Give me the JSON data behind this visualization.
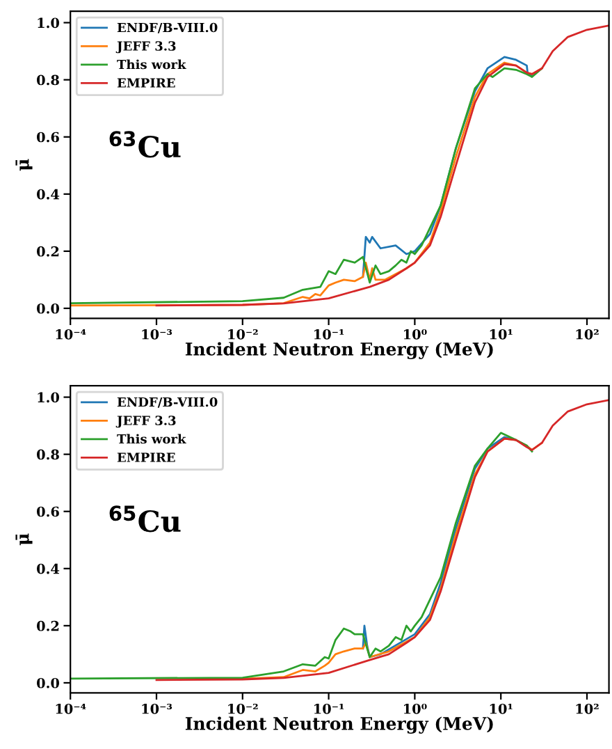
{
  "chart_data": [
    {
      "type": "line",
      "xlabel": "Incident Neutron Energy (MeV)",
      "ylabel": "μ̄",
      "annotations": [
        "$^{63}$Cu"
      ],
      "log": "x",
      "legend": "top left",
      "grid": false,
      "xlim": [
        0.0001,
        180
      ],
      "ylim": [
        -0.035,
        1.04
      ],
      "xticks": [
        {
          "value": 0.0001,
          "label": "10⁻⁴"
        },
        {
          "value": 0.001,
          "label": "10⁻³"
        },
        {
          "value": 0.01,
          "label": "10⁻²"
        },
        {
          "value": 0.1,
          "label": "10⁻¹"
        },
        {
          "value": 1,
          "label": "10⁰"
        },
        {
          "value": 10,
          "label": "10¹"
        },
        {
          "value": 100,
          "label": "10²"
        }
      ],
      "yticks": [
        {
          "value": 0,
          "label": "0.0"
        },
        {
          "value": 0.2,
          "label": "0.2"
        },
        {
          "value": 0.4,
          "label": "0.4"
        },
        {
          "value": 0.6,
          "label": "0.6"
        },
        {
          "value": 0.8,
          "label": "0.8"
        },
        {
          "value": 1,
          "label": "1.0"
        }
      ],
      "series": [
        {
          "name": "ENDF/B-VIII.0",
          "color": "#1f77b4",
          "x": [
            0.25,
            0.27,
            0.3,
            0.32,
            0.4,
            0.6,
            0.8,
            1.0,
            1.5,
            2,
            3,
            5,
            7,
            11,
            15,
            20,
            20.5,
            23
          ],
          "values": [
            0.11,
            0.25,
            0.23,
            0.25,
            0.21,
            0.22,
            0.19,
            0.2,
            0.26,
            0.36,
            0.56,
            0.76,
            0.84,
            0.88,
            0.87,
            0.85,
            0.82,
            0.815
          ]
        },
        {
          "name": "JEFF 3.3",
          "color": "#ff7f0e",
          "x": [
            0.0001,
            0.01,
            0.03,
            0.05,
            0.06,
            0.07,
            0.08,
            0.1,
            0.12,
            0.15,
            0.2,
            0.25,
            0.27,
            0.3,
            0.32,
            0.35,
            0.45,
            0.8,
            1.0,
            1.5,
            2,
            3,
            5,
            7,
            11,
            15,
            20,
            23,
            30
          ],
          "values": [
            0.01,
            0.012,
            0.018,
            0.04,
            0.035,
            0.05,
            0.045,
            0.08,
            0.09,
            0.1,
            0.095,
            0.11,
            0.16,
            0.1,
            0.14,
            0.1,
            0.1,
            0.14,
            0.16,
            0.23,
            0.34,
            0.53,
            0.74,
            0.82,
            0.86,
            0.85,
            0.825,
            0.82,
            0.84
          ]
        },
        {
          "name": "This work",
          "color": "#2ca02c",
          "x": [
            0.0001,
            0.01,
            0.03,
            0.05,
            0.08,
            0.1,
            0.12,
            0.15,
            0.2,
            0.25,
            0.3,
            0.35,
            0.4,
            0.5,
            0.6,
            0.7,
            0.8,
            0.9,
            1.0,
            1.2,
            2,
            3,
            5,
            7,
            8,
            11,
            15,
            20,
            23,
            30
          ],
          "values": [
            0.018,
            0.025,
            0.037,
            0.065,
            0.075,
            0.13,
            0.12,
            0.17,
            0.16,
            0.18,
            0.09,
            0.15,
            0.12,
            0.13,
            0.15,
            0.17,
            0.16,
            0.2,
            0.19,
            0.22,
            0.36,
            0.56,
            0.77,
            0.82,
            0.81,
            0.84,
            0.835,
            0.82,
            0.81,
            0.84
          ]
        },
        {
          "name": "EMPIRE",
          "color": "#d62728",
          "x": [
            0.001,
            0.01,
            0.03,
            0.1,
            0.3,
            0.5,
            0.8,
            1,
            1.5,
            2,
            3,
            5,
            7,
            11,
            15,
            20,
            23,
            30,
            40,
            60,
            100,
            180
          ],
          "values": [
            0.01,
            0.012,
            0.017,
            0.035,
            0.075,
            0.1,
            0.14,
            0.16,
            0.22,
            0.32,
            0.5,
            0.72,
            0.81,
            0.855,
            0.85,
            0.825,
            0.82,
            0.84,
            0.9,
            0.95,
            0.975,
            0.99
          ]
        }
      ]
    },
    {
      "type": "line",
      "xlabel": "Incident Neutron Energy (MeV)",
      "ylabel": "μ̄",
      "annotations": [
        "$^{65}$Cu"
      ],
      "log": "x",
      "legend": "top left",
      "grid": false,
      "xlim": [
        0.0001,
        180
      ],
      "ylim": [
        -0.035,
        1.04
      ],
      "xticks": [
        {
          "value": 0.0001,
          "label": "10⁻⁴"
        },
        {
          "value": 0.001,
          "label": "10⁻³"
        },
        {
          "value": 0.01,
          "label": "10⁻²"
        },
        {
          "value": 0.1,
          "label": "10⁻¹"
        },
        {
          "value": 1,
          "label": "10⁰"
        },
        {
          "value": 10,
          "label": "10¹"
        },
        {
          "value": 100,
          "label": "10²"
        }
      ],
      "yticks": [
        {
          "value": 0,
          "label": "0.0"
        },
        {
          "value": 0.2,
          "label": "0.2"
        },
        {
          "value": 0.4,
          "label": "0.4"
        },
        {
          "value": 0.6,
          "label": "0.6"
        },
        {
          "value": 0.8,
          "label": "0.8"
        },
        {
          "value": 1,
          "label": "1.0"
        }
      ],
      "series": [
        {
          "name": "ENDF/B-VIII.0",
          "color": "#1f77b4",
          "x": [
            0.25,
            0.26,
            0.28,
            0.3,
            0.4,
            1.0,
            1.5,
            2,
            3,
            5,
            7,
            11,
            15,
            20
          ],
          "values": [
            0.12,
            0.2,
            0.13,
            0.09,
            0.1,
            0.17,
            0.24,
            0.35,
            0.54,
            0.75,
            0.82,
            0.86,
            0.85,
            0.83
          ]
        },
        {
          "name": "JEFF 3.3",
          "color": "#ff7f0e",
          "x": [
            0.01,
            0.03,
            0.05,
            0.07,
            0.09,
            0.1,
            0.12,
            0.15,
            0.2,
            0.25,
            0.27,
            0.3,
            0.5,
            1.0,
            1.5,
            2,
            3,
            5,
            7,
            11,
            15,
            20,
            23,
            30
          ],
          "values": [
            0.014,
            0.02,
            0.045,
            0.04,
            0.06,
            0.07,
            0.1,
            0.11,
            0.12,
            0.12,
            0.14,
            0.09,
            0.11,
            0.16,
            0.23,
            0.33,
            0.52,
            0.73,
            0.81,
            0.855,
            0.85,
            0.83,
            0.815,
            0.84
          ]
        },
        {
          "name": "This work",
          "color": "#2ca02c",
          "x": [
            0.0001,
            0.01,
            0.03,
            0.05,
            0.07,
            0.09,
            0.1,
            0.12,
            0.15,
            0.18,
            0.2,
            0.25,
            0.3,
            0.35,
            0.4,
            0.5,
            0.6,
            0.7,
            0.8,
            0.9,
            1.0,
            1.2,
            2,
            3,
            5,
            7,
            10,
            15,
            20,
            23
          ],
          "values": [
            0.015,
            0.018,
            0.04,
            0.065,
            0.06,
            0.09,
            0.085,
            0.15,
            0.19,
            0.18,
            0.17,
            0.17,
            0.09,
            0.12,
            0.11,
            0.13,
            0.16,
            0.15,
            0.2,
            0.18,
            0.2,
            0.23,
            0.37,
            0.56,
            0.76,
            0.82,
            0.875,
            0.85,
            0.83,
            0.81
          ]
        },
        {
          "name": "EMPIRE",
          "color": "#d62728",
          "x": [
            0.001,
            0.01,
            0.03,
            0.1,
            0.3,
            0.5,
            0.8,
            1,
            1.5,
            2,
            3,
            5,
            7,
            11,
            15,
            20,
            23,
            30,
            40,
            60,
            100,
            180
          ],
          "values": [
            0.01,
            0.012,
            0.017,
            0.035,
            0.08,
            0.1,
            0.14,
            0.16,
            0.22,
            0.32,
            0.5,
            0.72,
            0.81,
            0.855,
            0.85,
            0.825,
            0.815,
            0.84,
            0.9,
            0.95,
            0.975,
            0.99
          ]
        }
      ]
    }
  ]
}
